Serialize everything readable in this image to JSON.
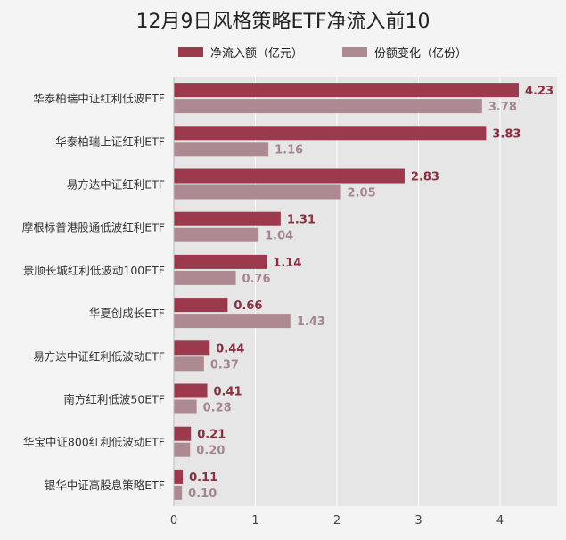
{
  "chart_data": {
    "type": "bar",
    "orientation": "horizontal",
    "title": "12月9日风格策略ETF净流入前10",
    "categories": [
      "华泰柏瑞中证红利低波ETF",
      "华泰柏瑞上证红利ETF",
      "易方达中证红利ETF",
      "摩根标普港股通低波红利ETF",
      "景顺长城红利低波动100ETF",
      "华夏创成长ETF",
      "易方达中证红利低波动ETF",
      "南方红利低波50ETF",
      "华宝中证800红利低波动ETF",
      "银华中证高股息策略ETF"
    ],
    "series": [
      {
        "name": "净流入额（亿元）",
        "color": "#9b3a4c",
        "label_color": "#8a2e40",
        "values": [
          4.23,
          3.83,
          2.83,
          1.31,
          1.14,
          0.66,
          0.44,
          0.41,
          0.21,
          0.11
        ]
      },
      {
        "name": "份额变化（亿份）",
        "color": "#ad8a92",
        "label_color": "#a58690",
        "values": [
          3.78,
          1.16,
          2.05,
          1.04,
          0.76,
          1.43,
          0.37,
          0.28,
          0.2,
          0.1
        ]
      }
    ],
    "xlim": [
      0,
      4.7
    ],
    "xticks": [
      "0",
      "1",
      "2",
      "3",
      "4"
    ],
    "grid": true,
    "legend": "top"
  }
}
